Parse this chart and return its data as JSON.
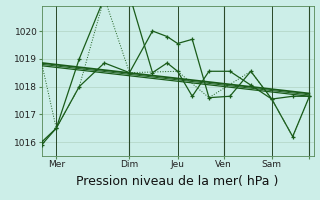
{
  "background_color": "#cceee8",
  "grid_color_major": "#aaccbb",
  "grid_color_minor": "#c8e8e0",
  "line_color": "#1a5c1a",
  "xlabel": "Pression niveau de la mer( hPa )",
  "xlabel_fontsize": 9,
  "yticks": [
    1016,
    1017,
    1018,
    1019,
    1020
  ],
  "ylim": [
    1015.5,
    1020.9
  ],
  "xlim": [
    0,
    130
  ],
  "xtick_positions": [
    7,
    42,
    65,
    87,
    110,
    128
  ],
  "xtick_labels": [
    "Mer",
    "Dim",
    "Jeu",
    "Ven",
    "Sam",
    ""
  ],
  "vline_positions": [
    7,
    65,
    110
  ],
  "vline_color": "#996666",
  "day_vlines": [
    42,
    87,
    128
  ],
  "day_vline_color": "#2a4a2a",
  "series1_x": [
    0,
    7,
    18,
    30,
    42,
    53,
    60,
    65,
    72,
    80,
    90,
    100,
    110,
    120,
    128
  ],
  "series1_y": [
    1016.0,
    1016.5,
    1019.0,
    1021.2,
    1021.3,
    1018.5,
    1018.85,
    1018.55,
    1017.65,
    1018.55,
    1018.55,
    1018.05,
    1017.55,
    1017.65,
    1017.65
  ],
  "series4_x": [
    0,
    7,
    18,
    30,
    42,
    53,
    60,
    65,
    72,
    80,
    90,
    100,
    110,
    120,
    128
  ],
  "series4_y": [
    1015.9,
    1016.5,
    1018.0,
    1018.85,
    1018.5,
    1020.0,
    1019.8,
    1019.55,
    1019.7,
    1017.6,
    1017.65,
    1018.55,
    1017.55,
    1016.2,
    1017.65
  ],
  "trend1_x": [
    0,
    128
  ],
  "trend1_y": [
    1018.85,
    1017.75
  ],
  "trend2_x": [
    0,
    128
  ],
  "trend2_y": [
    1018.75,
    1017.65
  ],
  "trend3_x": [
    0,
    128
  ],
  "trend3_y": [
    1018.8,
    1017.7
  ],
  "dotted_x": [
    0,
    7,
    18,
    30,
    42,
    65,
    80,
    100,
    110,
    120,
    128
  ],
  "dotted_y": [
    1018.85,
    1016.5,
    1018.0,
    1021.2,
    1018.5,
    1018.55,
    1017.6,
    1018.55,
    1017.55,
    1016.2,
    1017.65
  ]
}
